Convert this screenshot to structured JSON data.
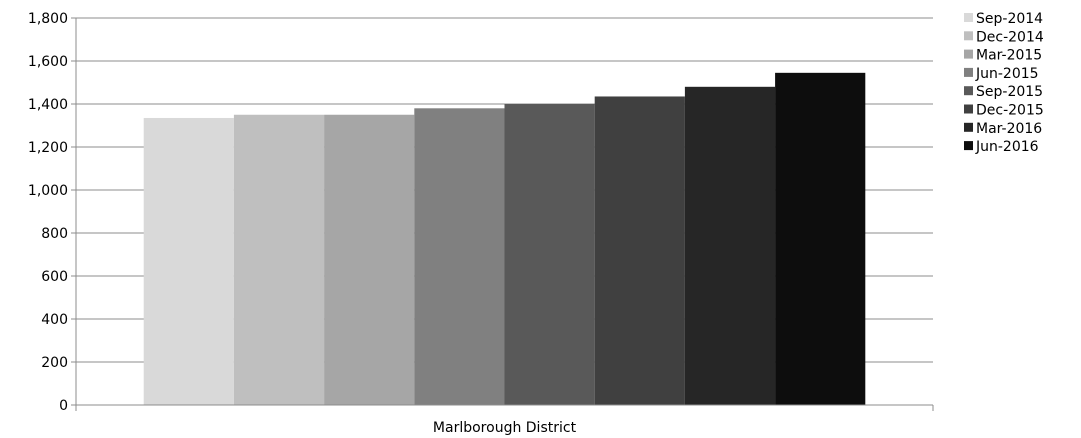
{
  "chart_data": {
    "type": "bar",
    "categories": [
      "Marlborough District"
    ],
    "series": [
      {
        "name": "Sep-2014",
        "values": [
          1335
        ],
        "color": "#d9d9d9"
      },
      {
        "name": "Dec-2014",
        "values": [
          1350
        ],
        "color": "#bfbfbf"
      },
      {
        "name": "Mar-2015",
        "values": [
          1350
        ],
        "color": "#a6a6a6"
      },
      {
        "name": "Jun-2015",
        "values": [
          1380
        ],
        "color": "#808080"
      },
      {
        "name": "Sep-2015",
        "values": [
          1400
        ],
        "color": "#595959"
      },
      {
        "name": "Dec-2015",
        "values": [
          1435
        ],
        "color": "#404040"
      },
      {
        "name": "Mar-2016",
        "values": [
          1480
        ],
        "color": "#262626"
      },
      {
        "name": "Jun-2016",
        "values": [
          1545
        ],
        "color": "#0d0d0d"
      }
    ],
    "yticks": [
      "0",
      "200",
      "400",
      "600",
      "800",
      "1,000",
      "1,200",
      "1,400",
      "1,600",
      "1,800"
    ],
    "ylim": [
      0,
      1800
    ],
    "grid": true,
    "gridline_color": "#8c8c8c",
    "legend_position": "right",
    "title": "",
    "xlabel": "",
    "ylabel": ""
  }
}
